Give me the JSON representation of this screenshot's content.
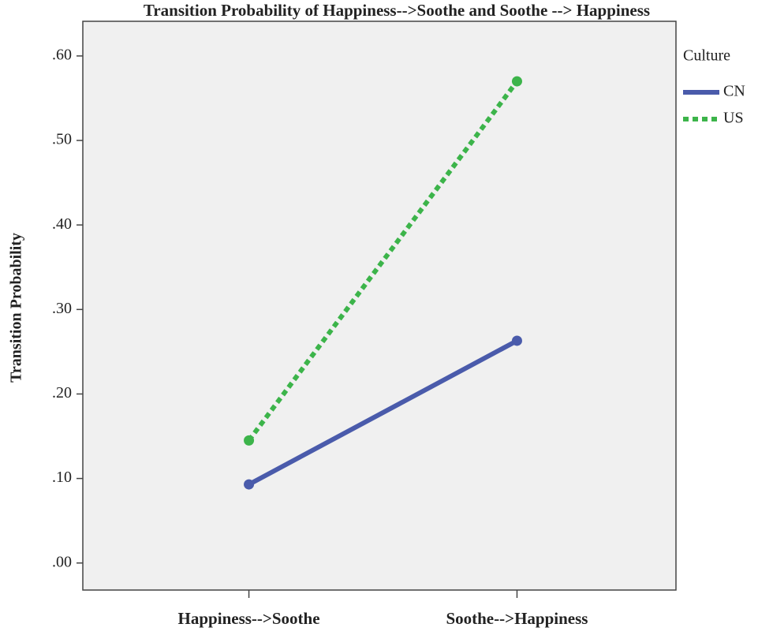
{
  "chart_data": {
    "type": "line",
    "title": "Transition Probability of Happiness-->Soothe and Soothe --> Happiness",
    "y_label": "Transition Probability",
    "legend_title": "Culture",
    "categories": [
      "Happiness-->Soothe",
      "Soothe-->Happiness"
    ],
    "series": [
      {
        "name": "CN",
        "color": "#4a5bab",
        "dash": "solid",
        "values": [
          0.093,
          0.263
        ]
      },
      {
        "name": "US",
        "color": "#3cb44a",
        "dash": "dotted",
        "values": [
          0.145,
          0.57
        ]
      }
    ],
    "ylim": [
      -0.032,
      0.641
    ],
    "yticks": [
      {
        "value": 0,
        "label": ".00"
      },
      {
        "value": 0.1,
        "label": ".10"
      },
      {
        "value": 0.2,
        "label": ".20"
      },
      {
        "value": 0.3,
        "label": ".30"
      },
      {
        "value": 0.4,
        "label": ".40"
      },
      {
        "value": 0.5,
        "label": ".50"
      },
      {
        "value": 0.6,
        "label": ".60"
      }
    ],
    "legend_position": "right"
  }
}
